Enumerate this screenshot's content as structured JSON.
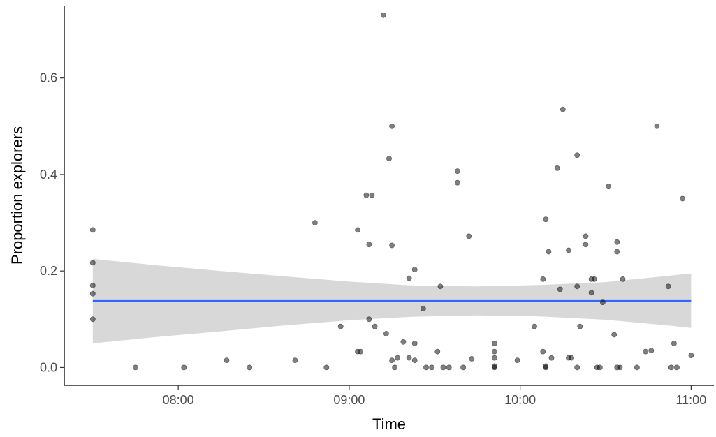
{
  "chart_data": {
    "type": "scatter",
    "xlabel": "Time",
    "ylabel": "Proportion explorers",
    "xlim": [
      "07:20",
      "11:08"
    ],
    "ylim": [
      -0.037,
      0.75
    ],
    "x_ticks": [
      "08:00",
      "09:00",
      "10:00",
      "11:00"
    ],
    "y_ticks": [
      "0.0",
      "0.2",
      "0.4",
      "0.6"
    ],
    "grid": false,
    "legend": "none",
    "colors": {
      "points": "#000000",
      "fit_line": "#3366ff",
      "confidence_band": "#a8a8a8"
    },
    "points": [
      {
        "x": "07:30",
        "y": 0.285
      },
      {
        "x": "07:30",
        "y": 0.217
      },
      {
        "x": "07:30",
        "y": 0.17
      },
      {
        "x": "07:30",
        "y": 0.153
      },
      {
        "x": "07:30",
        "y": 0.1
      },
      {
        "x": "07:45",
        "y": 0.0
      },
      {
        "x": "08:02",
        "y": 0.0
      },
      {
        "x": "08:17",
        "y": 0.015
      },
      {
        "x": "08:25",
        "y": 0.0
      },
      {
        "x": "08:41",
        "y": 0.015
      },
      {
        "x": "08:48",
        "y": 0.3
      },
      {
        "x": "08:52",
        "y": 0.0
      },
      {
        "x": "08:57",
        "y": 0.085
      },
      {
        "x": "09:03",
        "y": 0.285
      },
      {
        "x": "09:03",
        "y": 0.033
      },
      {
        "x": "09:04",
        "y": 0.033
      },
      {
        "x": "09:06",
        "y": 0.357
      },
      {
        "x": "09:07",
        "y": 0.255
      },
      {
        "x": "09:07",
        "y": 0.1
      },
      {
        "x": "09:08",
        "y": 0.357
      },
      {
        "x": "09:09",
        "y": 0.085
      },
      {
        "x": "09:12",
        "y": 0.73
      },
      {
        "x": "09:13",
        "y": 0.07
      },
      {
        "x": "09:14",
        "y": 0.433
      },
      {
        "x": "09:15",
        "y": 0.5
      },
      {
        "x": "09:15",
        "y": 0.253
      },
      {
        "x": "09:15",
        "y": 0.015
      },
      {
        "x": "09:16",
        "y": 0.0
      },
      {
        "x": "09:17",
        "y": 0.02
      },
      {
        "x": "09:19",
        "y": 0.053
      },
      {
        "x": "09:21",
        "y": 0.185
      },
      {
        "x": "09:21",
        "y": 0.02
      },
      {
        "x": "09:23",
        "y": 0.203
      },
      {
        "x": "09:23",
        "y": 0.05
      },
      {
        "x": "09:23",
        "y": 0.015
      },
      {
        "x": "09:26",
        "y": 0.122
      },
      {
        "x": "09:27",
        "y": 0.0
      },
      {
        "x": "09:29",
        "y": 0.0
      },
      {
        "x": "09:31",
        "y": 0.033
      },
      {
        "x": "09:32",
        "y": 0.168
      },
      {
        "x": "09:33",
        "y": 0.0
      },
      {
        "x": "09:35",
        "y": 0.0
      },
      {
        "x": "09:38",
        "y": 0.407
      },
      {
        "x": "09:38",
        "y": 0.383
      },
      {
        "x": "09:40",
        "y": 0.0
      },
      {
        "x": "09:42",
        "y": 0.272
      },
      {
        "x": "09:43",
        "y": 0.018
      },
      {
        "x": "09:51",
        "y": 0.05
      },
      {
        "x": "09:51",
        "y": 0.033
      },
      {
        "x": "09:51",
        "y": 0.02
      },
      {
        "x": "09:51",
        "y": 0.003
      },
      {
        "x": "09:51",
        "y": 0.0
      },
      {
        "x": "09:59",
        "y": 0.015
      },
      {
        "x": "10:05",
        "y": 0.085
      },
      {
        "x": "10:08",
        "y": 0.033
      },
      {
        "x": "10:08",
        "y": 0.183
      },
      {
        "x": "10:09",
        "y": 0.307
      },
      {
        "x": "10:09",
        "y": 0.003
      },
      {
        "x": "10:09",
        "y": 0.0
      },
      {
        "x": "10:10",
        "y": 0.24
      },
      {
        "x": "10:11",
        "y": 0.02
      },
      {
        "x": "10:13",
        "y": 0.413
      },
      {
        "x": "10:14",
        "y": 0.162
      },
      {
        "x": "10:15",
        "y": 0.535
      },
      {
        "x": "10:17",
        "y": 0.02
      },
      {
        "x": "10:17",
        "y": 0.243
      },
      {
        "x": "10:18",
        "y": 0.02
      },
      {
        "x": "10:20",
        "y": 0.44
      },
      {
        "x": "10:20",
        "y": 0.168
      },
      {
        "x": "10:20",
        "y": 0.0
      },
      {
        "x": "10:21",
        "y": 0.085
      },
      {
        "x": "10:23",
        "y": 0.272
      },
      {
        "x": "10:23",
        "y": 0.255
      },
      {
        "x": "10:25",
        "y": 0.155
      },
      {
        "x": "10:25",
        "y": 0.183
      },
      {
        "x": "10:26",
        "y": 0.183
      },
      {
        "x": "10:27",
        "y": 0.0
      },
      {
        "x": "10:28",
        "y": 0.0
      },
      {
        "x": "10:29",
        "y": 0.135
      },
      {
        "x": "10:31",
        "y": 0.375
      },
      {
        "x": "10:33",
        "y": 0.068
      },
      {
        "x": "10:34",
        "y": 0.26
      },
      {
        "x": "10:34",
        "y": 0.24
      },
      {
        "x": "10:34",
        "y": 0.0
      },
      {
        "x": "10:35",
        "y": 0.0
      },
      {
        "x": "10:36",
        "y": 0.183
      },
      {
        "x": "10:41",
        "y": 0.0
      },
      {
        "x": "10:44",
        "y": 0.033
      },
      {
        "x": "10:46",
        "y": 0.035
      },
      {
        "x": "10:48",
        "y": 0.5
      },
      {
        "x": "10:52",
        "y": 0.168
      },
      {
        "x": "10:53",
        "y": 0.0
      },
      {
        "x": "10:54",
        "y": 0.05
      },
      {
        "x": "10:55",
        "y": 0.0
      },
      {
        "x": "10:57",
        "y": 0.35
      },
      {
        "x": "11:00",
        "y": 0.025
      }
    ],
    "fit_line": {
      "x": [
        "07:30",
        "11:00"
      ],
      "y": [
        0.138,
        0.138
      ]
    },
    "confidence_band": [
      {
        "x": "07:30",
        "lower": 0.05,
        "upper": 0.225
      },
      {
        "x": "07:52",
        "lower": 0.063,
        "upper": 0.212
      },
      {
        "x": "08:15",
        "lower": 0.075,
        "upper": 0.2
      },
      {
        "x": "08:37",
        "lower": 0.087,
        "upper": 0.189
      },
      {
        "x": "09:00",
        "lower": 0.098,
        "upper": 0.178
      },
      {
        "x": "09:22",
        "lower": 0.105,
        "upper": 0.17
      },
      {
        "x": "09:45",
        "lower": 0.108,
        "upper": 0.168
      },
      {
        "x": "10:07",
        "lower": 0.106,
        "upper": 0.171
      },
      {
        "x": "10:30",
        "lower": 0.099,
        "upper": 0.177
      },
      {
        "x": "10:52",
        "lower": 0.087,
        "upper": 0.19
      },
      {
        "x": "11:00",
        "lower": 0.082,
        "upper": 0.195
      }
    ]
  }
}
